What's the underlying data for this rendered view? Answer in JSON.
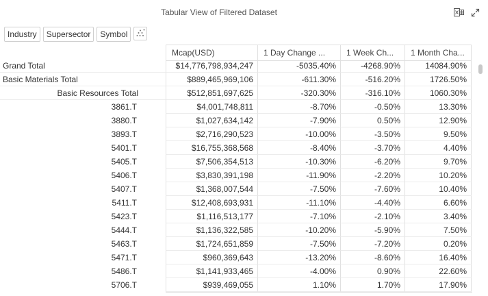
{
  "header": {
    "title": "Tabular View of Filtered Dataset"
  },
  "icons": {
    "export": "excel-icon",
    "expand": "expand-icon",
    "hierarchy": "hierarchy-icon"
  },
  "pills": [
    "Industry",
    "Supersector",
    "Symbol"
  ],
  "columns": [
    "Mcap(USD)",
    "1 Day Change ...",
    "1 Week Ch...",
    "1 Month Cha..."
  ],
  "rows": [
    {
      "label": "Grand Total",
      "level": 0,
      "values": [
        "$14,776,798,934,247",
        "-5035.40%",
        "-4268.90%",
        "14084.90%"
      ]
    },
    {
      "label": "Basic Materials Total",
      "level": 1,
      "values": [
        "$889,465,969,106",
        "-611.30%",
        "-516.20%",
        "1726.50%"
      ]
    },
    {
      "label": "Basic Resources Total",
      "level": 2,
      "values": [
        "$512,851,697,625",
        "-320.30%",
        "-316.10%",
        "1060.30%"
      ]
    },
    {
      "label": "3861.T",
      "level": 3,
      "values": [
        "$4,001,748,811",
        "-8.70%",
        "-0.50%",
        "13.30%"
      ]
    },
    {
      "label": "3880.T",
      "level": 3,
      "values": [
        "$1,027,634,142",
        "-7.90%",
        "0.50%",
        "12.90%"
      ]
    },
    {
      "label": "3893.T",
      "level": 3,
      "values": [
        "$2,716,290,523",
        "-10.00%",
        "-3.50%",
        "9.50%"
      ]
    },
    {
      "label": "5401.T",
      "level": 3,
      "values": [
        "$16,755,368,568",
        "-8.40%",
        "-3.70%",
        "4.40%"
      ]
    },
    {
      "label": "5405.T",
      "level": 3,
      "values": [
        "$7,506,354,513",
        "-10.30%",
        "-6.20%",
        "9.70%"
      ]
    },
    {
      "label": "5406.T",
      "level": 3,
      "values": [
        "$3,830,391,198",
        "-11.90%",
        "-2.20%",
        "10.20%"
      ]
    },
    {
      "label": "5407.T",
      "level": 3,
      "values": [
        "$1,368,007,544",
        "-7.50%",
        "-7.60%",
        "10.40%"
      ]
    },
    {
      "label": "5411.T",
      "level": 3,
      "values": [
        "$12,408,693,931",
        "-11.10%",
        "-4.40%",
        "6.60%"
      ]
    },
    {
      "label": "5423.T",
      "level": 3,
      "values": [
        "$1,116,513,177",
        "-7.10%",
        "-2.10%",
        "3.40%"
      ]
    },
    {
      "label": "5444.T",
      "level": 3,
      "values": [
        "$1,136,322,585",
        "-10.20%",
        "-5.90%",
        "7.50%"
      ]
    },
    {
      "label": "5463.T",
      "level": 3,
      "values": [
        "$1,724,651,859",
        "-7.50%",
        "-7.20%",
        "0.20%"
      ]
    },
    {
      "label": "5471.T",
      "level": 3,
      "values": [
        "$960,369,643",
        "-13.20%",
        "-8.60%",
        "16.40%"
      ]
    },
    {
      "label": "5486.T",
      "level": 3,
      "values": [
        "$1,141,933,465",
        "-4.00%",
        "0.90%",
        "22.60%"
      ]
    },
    {
      "label": "5706.T",
      "level": 3,
      "values": [
        "$939,469,055",
        "1.10%",
        "1.70%",
        "17.90%"
      ]
    }
  ]
}
